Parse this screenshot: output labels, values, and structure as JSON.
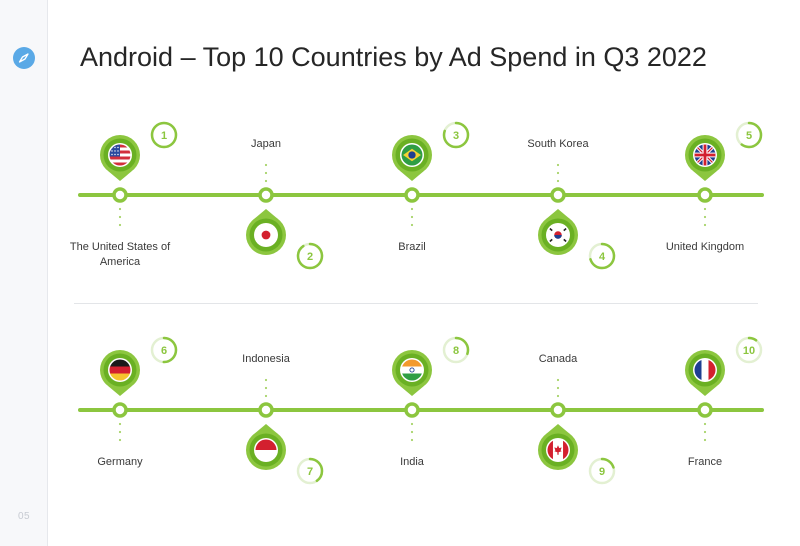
{
  "title": "Android – Top 10 Countries by Ad Spend in Q3 2022",
  "page_number": "05",
  "colors": {
    "line": "#8cc63f",
    "pin_outer": "#8cc63f",
    "pin_inner": "#6ab023",
    "rank_ring": "#8cc63f",
    "rank_ring_track": "#e3f0d2",
    "dots": "#a7d46a"
  },
  "rows": [
    {
      "countries": [
        {
          "rank": "1",
          "name": "The United States of America",
          "flag": "us-flag",
          "rank_progress": 1.0
        },
        {
          "rank": "2",
          "name": "Japan",
          "flag": "japan-flag",
          "rank_progress": 0.9
        },
        {
          "rank": "3",
          "name": "Brazil",
          "flag": "brazil-flag",
          "rank_progress": 0.8
        },
        {
          "rank": "4",
          "name": "South Korea",
          "flag": "south-korea-flag",
          "rank_progress": 0.7
        },
        {
          "rank": "5",
          "name": "United Kingdom",
          "flag": "uk-flag",
          "rank_progress": 0.6
        }
      ]
    },
    {
      "countries": [
        {
          "rank": "6",
          "name": "Germany",
          "flag": "germany-flag",
          "rank_progress": 0.5
        },
        {
          "rank": "7",
          "name": "Indonesia",
          "flag": "indonesia-flag",
          "rank_progress": 0.4
        },
        {
          "rank": "8",
          "name": "India",
          "flag": "india-flag",
          "rank_progress": 0.3
        },
        {
          "rank": "9",
          "name": "Canada",
          "flag": "canada-flag",
          "rank_progress": 0.2
        },
        {
          "rank": "10",
          "name": "France",
          "flag": "france-flag",
          "rank_progress": 0.1
        }
      ]
    }
  ]
}
